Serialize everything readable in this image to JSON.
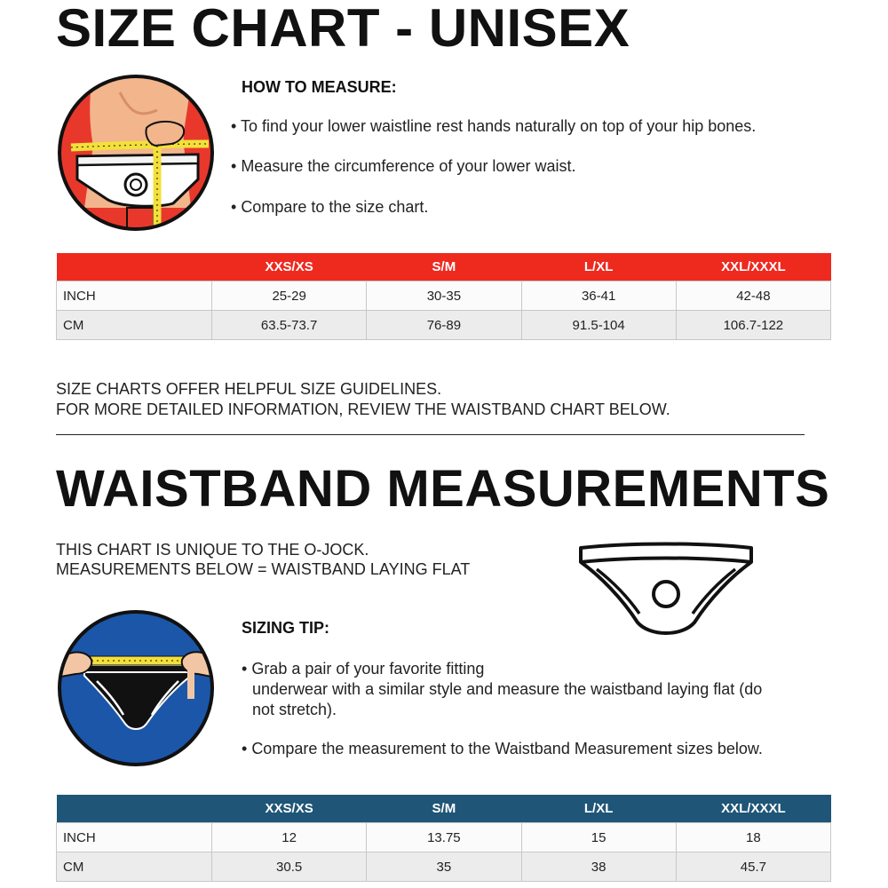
{
  "size_chart": {
    "title": "SIZE CHART - UNISEX",
    "how_to_heading": "HOW TO MEASURE:",
    "bullets": [
      "To find your lower waistline rest hands naturally on top of your hip bones.",
      "Measure the circumference of your lower waist.",
      "Compare to the size chart."
    ],
    "table": {
      "headers": [
        "",
        "XXS/XS",
        "S/M",
        "L/XL",
        "XXL/XXXL"
      ],
      "rows": [
        [
          "INCH",
          "25-29",
          "30-35",
          "36-41",
          "42-48"
        ],
        [
          "CM",
          "63.5-73.7",
          "76-89",
          "91.5-104",
          "106.7-122"
        ]
      ],
      "header_color": "#ee2a1f"
    },
    "note_lines": [
      "SIZE CHARTS OFFER HELPFUL SIZE GUIDELINES.",
      "FOR MORE DETAILED INFORMATION, REVIEW THE WAISTBAND CHART BELOW."
    ]
  },
  "waistband": {
    "title": "WAISTBAND MEASUREMENTS",
    "intro_lines": [
      "THIS CHART IS UNIQUE TO THE O-JOCK.",
      "MEASUREMENTS BELOW = WAISTBAND LAYING FLAT"
    ],
    "tip_heading": "SIZING TIP:",
    "bullets": [
      "Grab a pair of your favorite fitting",
      "underwear with a similar style and measure the waistband laying flat (do",
      "not stretch).",
      "Compare the measurement to the Waistband Measurement sizes below."
    ],
    "table": {
      "headers": [
        "",
        "XXS/XS",
        "S/M",
        "L/XL",
        "XXL/XXXL"
      ],
      "rows": [
        [
          "INCH",
          "12",
          "13.75",
          "15",
          "18"
        ],
        [
          "CM",
          "30.5",
          "35",
          "38",
          "45.7"
        ]
      ],
      "header_color": "#1f5577"
    }
  },
  "icons": [
    "waist-measure-illustration-icon",
    "o-jock-outline-icon",
    "waistband-flat-measure-icon"
  ]
}
